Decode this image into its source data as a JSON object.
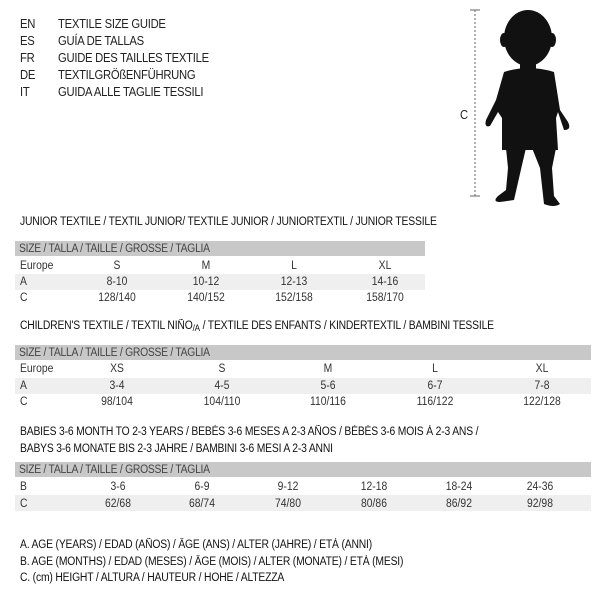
{
  "header": [
    {
      "code": "EN",
      "text": "TEXTILE SIZE GUIDE"
    },
    {
      "code": "ES",
      "text": "GUÍA DE TALLAS"
    },
    {
      "code": "FR",
      "text": "GUIDE DES TAILLES TEXTILE"
    },
    {
      "code": "DE",
      "text": "TEXTILGRÖßENFÜHRUNG"
    },
    {
      "code": "IT",
      "text": "GUIDA ALLE TAGLIE TESSILI"
    }
  ],
  "figure": {
    "measure_label": "C",
    "icon": "child-silhouette"
  },
  "junior": {
    "title": "JUNIOR TEXTILE / TEXTIL JUNIOR/ TEXTILE JUNIOR / JUNIORTEXTIL / JUNIOR TESSILE",
    "size_header": "SIZE / TALLA / TAILLE / GRÖSSE / TAGLIA",
    "rows": [
      {
        "label": "Europe",
        "values": [
          "S",
          "M",
          "L",
          "XL"
        ]
      },
      {
        "label": "A",
        "values": [
          "8-10",
          "10-12",
          "12-13",
          "14-16"
        ]
      },
      {
        "label": "C",
        "values": [
          "128/140",
          "140/152",
          "152/158",
          "158/170"
        ]
      }
    ]
  },
  "children": {
    "title_pre": "CHILDREN'S TEXTILE / TEXTIL NIÑO",
    "title_sub": "/A",
    "title_post": " / TEXTILE DES ENFANTS / KINDERTEXTIL / BAMBINI TESSILE",
    "size_header": "SIZE / TALLA / TAILLE / GRÖSSE / TAGLIA",
    "rows": [
      {
        "label": "Europe",
        "values": [
          "XS",
          "S",
          "M",
          "L",
          "XL"
        ]
      },
      {
        "label": "A",
        "values": [
          "3-4",
          "4-5",
          "5-6",
          "6-7",
          "7-8"
        ]
      },
      {
        "label": "C",
        "values": [
          "98/104",
          "104/110",
          "110/116",
          "116/122",
          "122/128"
        ]
      }
    ]
  },
  "babies": {
    "title_line1": "BABIES 3-6 MONTH TO 2-3 YEARS / BEBÉS 3-6 MESES A 2-3 AÑOS / BÉBÉS 3-6 MOIS À 2-3 ANS /",
    "title_line2": "BABYS 3-6 MONATE BIS 2-3 JAHRE / BAMBINI 3-6 MESI A 2-3 ANNI",
    "size_header": "SIZE / TALLA / TAILLE / GRÖSSE / TAGLIA",
    "rows": [
      {
        "label": "B",
        "values": [
          "3-6",
          "6-9",
          "9-12",
          "12-18",
          "18-24",
          "24-36"
        ]
      },
      {
        "label": "C",
        "values": [
          "62/68",
          "68/74",
          "74/80",
          "80/86",
          "86/92",
          "92/98"
        ]
      }
    ]
  },
  "legend": [
    "A. AGE (YEARS) / EDAD (AÑOS) / ÂGE (ANS) / ALTER (JAHRE) / ETÀ (ANNI)",
    "B. AGE (MONTHS) / EDAD (MESES) / ÂGE (MOIS) / ALTER (MONATE) / ETÀ (MESI)",
    "C. (cm) HEIGHT / ALTURA / HAUTEUR / HÖHE / ALTEZZA"
  ]
}
